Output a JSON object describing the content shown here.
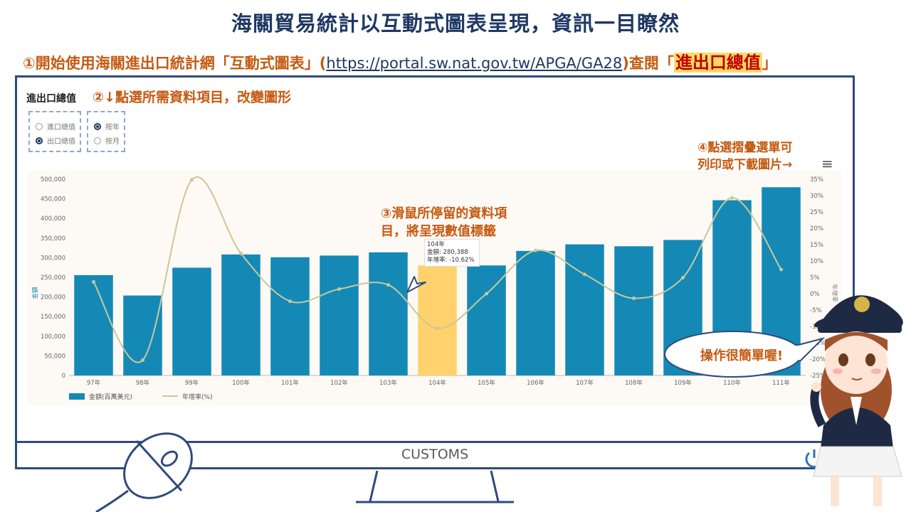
{
  "title": "海關貿易統計以互動式圖表呈現，資訊一目瞭然",
  "step1": {
    "prefix": "①開始使用海關進出口統計網「互動式圖表」(",
    "url": "https://portal.sw.nat.gov.tw/APGA/GA28",
    "middle": ")查閱「",
    "highlight": "進出口總值",
    "suffix": "」"
  },
  "step2": "②↓點選所需資料項目，改變圖形",
  "step3": [
    "③滑鼠所停留的資料項",
    "目，將呈現數值標籤"
  ],
  "step4": [
    "④點選摺疊選單可",
    "列印或下載圖片→"
  ],
  "menu_icon": "hamburger-menu-icon",
  "speech_bubble": "操作很簡單喔!",
  "customs_label": "CUSTOMS",
  "power_icon": "power-icon",
  "filters": {
    "chart_title": "進出口總值",
    "group1": [
      {
        "label": "進口總值",
        "selected": false
      },
      {
        "label": "出口總值",
        "selected": true
      }
    ],
    "group2": [
      {
        "label": "按年",
        "selected": true
      },
      {
        "label": "按月",
        "selected": false
      }
    ]
  },
  "tooltip": {
    "year": "104年",
    "amount": "金額: 280,388",
    "growth": "年增率: -10.62%"
  },
  "chart_data": {
    "type": "bar",
    "categories": [
      "97年",
      "98年",
      "99年",
      "100年",
      "101年",
      "102年",
      "103年",
      "104年",
      "105年",
      "106年",
      "107年",
      "108年",
      "109年",
      "110年",
      "111年"
    ],
    "series": [
      {
        "name": "金額(百萬美元)",
        "type": "bar",
        "values": [
          255629,
          203675,
          274601,
          308257,
          301181,
          305441,
          313696,
          280388,
          280321,
          317249,
          334007,
          329157,
          345276,
          446448,
          479520
        ],
        "color": "#1589b6",
        "highlight_index": 7,
        "highlight_color": "#ffd26e"
      },
      {
        "name": "年增率(%)",
        "type": "line",
        "values": [
          3.6,
          -20.3,
          34.8,
          12.3,
          -2.3,
          1.4,
          2.7,
          -10.6,
          0.0,
          13.2,
          5.9,
          -1.4,
          4.9,
          29.3,
          7.4
        ],
        "color": "#c8c89a"
      }
    ],
    "ylabel_left": "金額",
    "ylabel_right": "年增率",
    "y_left": {
      "min": 0,
      "max": 500000,
      "ticks": [
        "0",
        "50,000",
        "100,000",
        "150,000",
        "200,000",
        "250,000",
        "300,000",
        "350,000",
        "400,000",
        "450,000",
        "500,000"
      ]
    },
    "y_right": {
      "min": -25,
      "max": 35,
      "ticks": [
        "-25%",
        "-20%",
        "-15%",
        "-10%",
        "-5%",
        "0%",
        "5%",
        "10%",
        "15%",
        "20%",
        "25%",
        "30%",
        "35%"
      ]
    },
    "legend_position": "bottom-left"
  }
}
